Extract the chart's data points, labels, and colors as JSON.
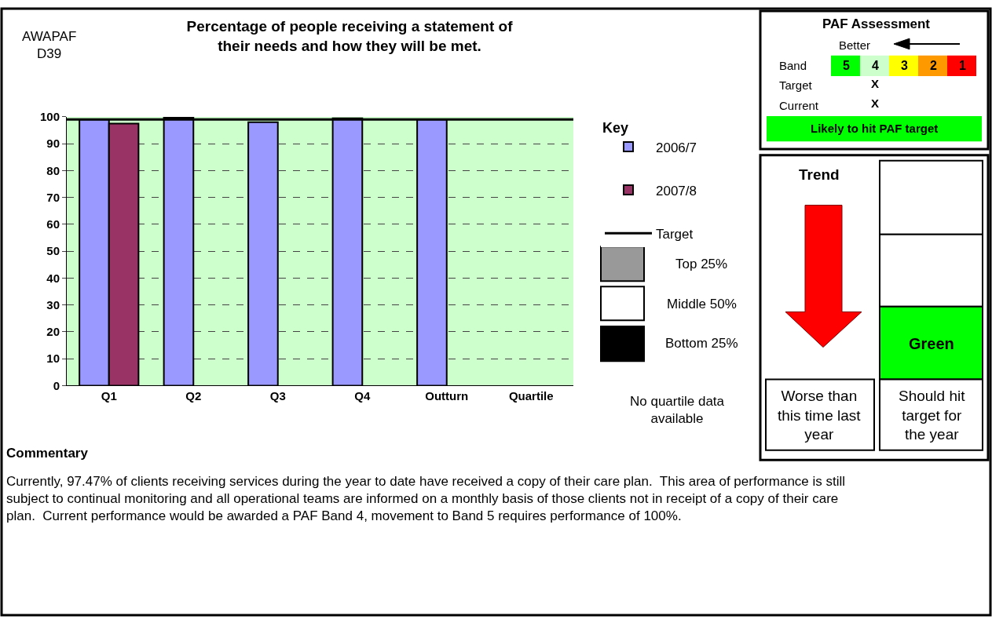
{
  "chart_data": {
    "type": "bar",
    "title": "Percentage of people receiving a statement of\ntheir needs and how they will be met.",
    "categories": [
      "Q1",
      "Q2",
      "Q3",
      "Q4",
      "Outturn",
      "Quartile"
    ],
    "series": [
      {
        "name": "2006/7",
        "color": "#9999ff",
        "values": [
          99,
          99.7,
          98,
          99.5,
          99,
          null
        ]
      },
      {
        "name": "2007/8",
        "color": "#993366",
        "values": [
          97.5,
          null,
          null,
          null,
          null,
          null
        ]
      }
    ],
    "ylim": [
      0,
      100
    ],
    "yticks": [
      0,
      10,
      20,
      30,
      40,
      50,
      60,
      70,
      80,
      90,
      100
    ],
    "grid": "y",
    "ref_lines": [
      {
        "axis": "y",
        "value": 99,
        "label": "Target",
        "color": "#000000"
      }
    ],
    "bands": [
      {
        "axis": "y",
        "from": 0,
        "to": 100,
        "color": "#ccffcc"
      }
    ],
    "legend": "right",
    "legend_title": "Key",
    "annotations": [
      "AWAPAF\nD39",
      "Top 25%",
      "Middle 50%",
      "Bottom 25%",
      "No quartile data\navailable",
      "PAF Assessment",
      "Better",
      "Band",
      "5",
      "4",
      "3",
      "2",
      "1",
      "Target",
      "X",
      "Current",
      "X",
      "Likely to hit PAF target",
      "Trend",
      "Worse than\nthis time last\nyear",
      "Green",
      "Should hit\ntarget for\nthe year",
      "Commentary",
      "Currently, 97.47% of clients receiving services during the year to date have received a copy of their care plan.  This area of performance is still subject to continual monitoring and all operational teams are informed on a monthly basis of those clients not in receipt of a copy of their care plan.  Current performance would be awarded a PAF Band 4, movement to Band 5 requires performance of 100%."
    ]
  }
}
